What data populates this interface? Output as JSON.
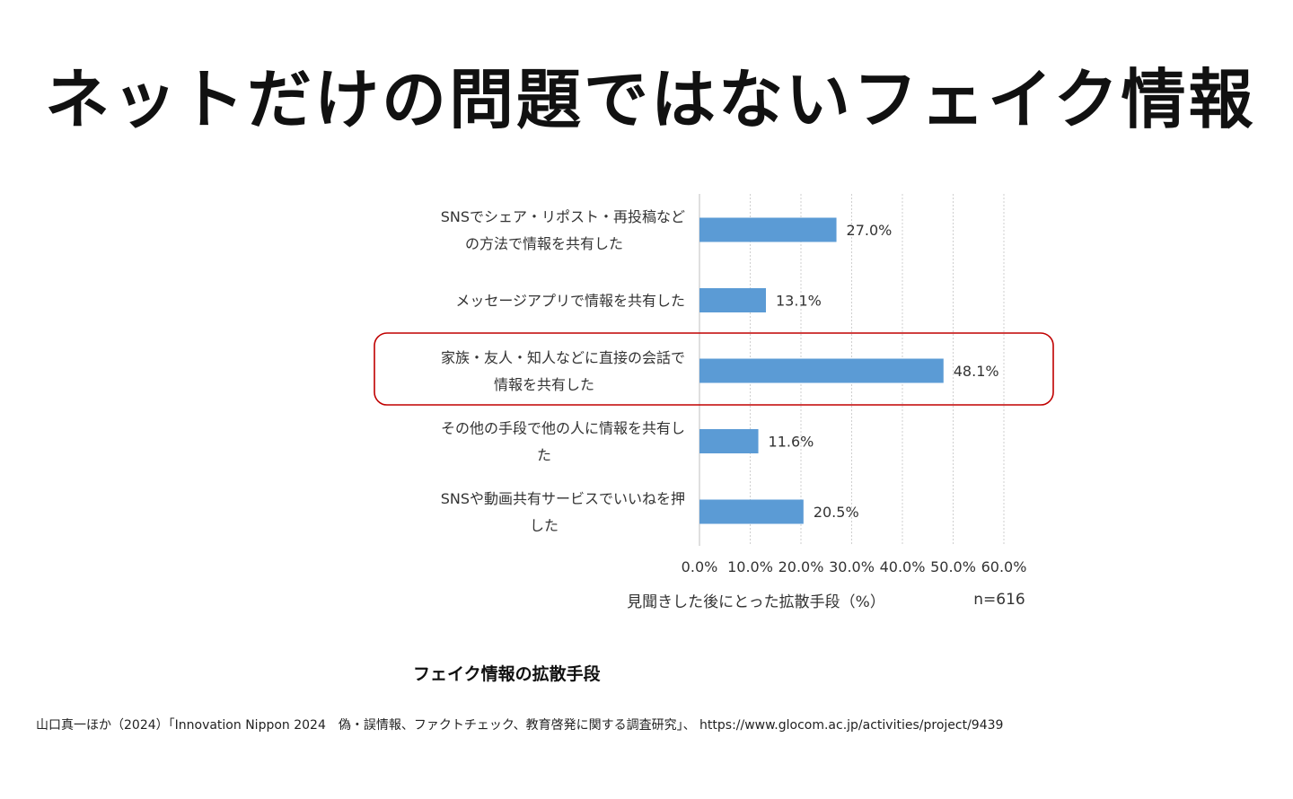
{
  "slide": {
    "title": "ネットだけの問題ではないフェイク情報",
    "caption": "フェイク情報の拡散手段",
    "source": "山口真一ほか（2024）「Innovation Nippon 2024　偽・誤情報、ファクトチェック、教育啓発に関する調査研究」、 https://www.glocom.ac.jp/activities/project/9439"
  },
  "chart_data": {
    "type": "bar",
    "orientation": "horizontal",
    "categories": [
      [
        "SNSでシェア・リポスト・再投稿など",
        "の方法で情報を共有した"
      ],
      [
        "メッセージアプリで情報を共有した"
      ],
      [
        "家族・友人・知人などに直接の会話で",
        "情報を共有した"
      ],
      [
        "その他の手段で他の人に情報を共有し",
        "た"
      ],
      [
        "SNSや動画共有サービスでいいねを押",
        "した"
      ]
    ],
    "values": [
      27.0,
      13.1,
      48.1,
      11.6,
      20.5
    ],
    "data_labels": [
      "27.0%",
      "13.1%",
      "48.1%",
      "11.6%",
      "20.5%"
    ],
    "xlim": [
      0,
      60
    ],
    "xticks": [
      0,
      10,
      20,
      30,
      40,
      50,
      60
    ],
    "xtick_labels": [
      "0.0%",
      "10.0%",
      "20.0%",
      "30.0%",
      "40.0%",
      "50.0%",
      "60.0%"
    ],
    "xlabel": "見聞きした後にとった拡散手段（%）",
    "annotation": "n=616",
    "highlighted_index": 2,
    "grid": "vertical",
    "bar_color": "#5b9bd5",
    "highlight_color": "#c00000"
  }
}
